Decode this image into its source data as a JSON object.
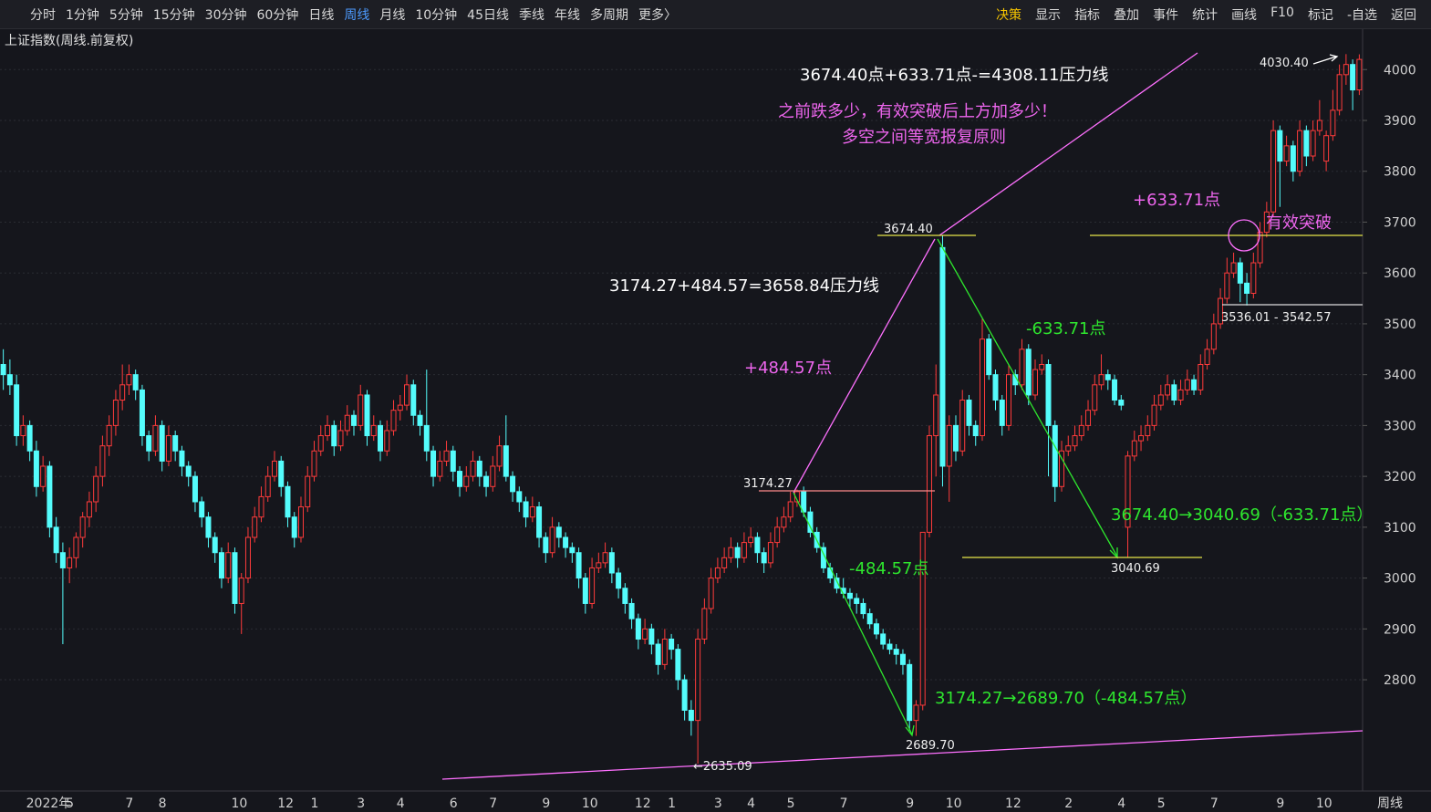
{
  "toolbar": {
    "periods": [
      "分时",
      "1分钟",
      "5分钟",
      "15分钟",
      "30分钟",
      "60分钟",
      "日线",
      "周线",
      "月线",
      "10分钟",
      "45日线",
      "季线",
      "年线",
      "多周期",
      "更多〉"
    ],
    "active": "周线",
    "tools": [
      "决策",
      "显示",
      "指标",
      "叠加",
      "事件",
      "统计",
      "画线",
      "F10",
      "标记",
      "-自选",
      "返回"
    ]
  },
  "subtitle": "上证指数(周线.前复权)",
  "footer_period": "周线",
  "annotations": {
    "top_formula": "3674.40点+633.71点-=4308.11压力线",
    "note1": "之前跌多少，有效突破后上方加多少！",
    "note2": "多空之间等宽报复原则",
    "mid_formula": "3174.27+484.57=3658.84压力线",
    "up1": "+484.57点",
    "down2": "-633.71点",
    "up2": "+633.71点",
    "breakout": "有效突破",
    "down1": "-484.57点",
    "drop2": "3674.40→3040.69（-633.71点）",
    "drop1": "3174.27→2689.70（-484.57点）",
    "p3674": "3674.40",
    "p3174": "3174.27",
    "p3040": "3040.69",
    "p2689": "2689.70",
    "p2635": "←2635.09",
    "p4030": "4030.40",
    "p3536": "3536.01 - 3542.57"
  },
  "chart_data": {
    "type": "candlestick",
    "up_color": "#ff3b3b",
    "down_color": "#54fcfc",
    "grid": true,
    "ylim": [
      2583,
      4083
    ],
    "yticks": [
      2800,
      2900,
      3000,
      3100,
      3200,
      3300,
      3400,
      3500,
      3600,
      3700,
      3800,
      3900,
      4000
    ],
    "categories": [
      null,
      null,
      null,
      null,
      "2022年",
      null,
      null,
      null,
      null,
      null,
      "5",
      null,
      null,
      null,
      null,
      null,
      null,
      null,
      null,
      "7",
      null,
      null,
      null,
      null,
      "8",
      null,
      null,
      null,
      null,
      null,
      null,
      null,
      null,
      null,
      null,
      "10",
      null,
      null,
      null,
      null,
      null,
      null,
      "12",
      null,
      null,
      null,
      null,
      "1",
      null,
      null,
      null,
      null,
      null,
      null,
      "3",
      null,
      null,
      null,
      null,
      null,
      "4",
      null,
      null,
      null,
      null,
      null,
      null,
      null,
      "6",
      null,
      null,
      null,
      null,
      null,
      "7",
      null,
      null,
      null,
      null,
      null,
      null,
      null,
      "9",
      null,
      null,
      null,
      null,
      null,
      "10",
      null,
      null,
      null,
      null,
      null,
      null,
      null,
      "12",
      null,
      null,
      null,
      null,
      "1",
      null,
      null,
      null,
      null,
      null,
      null,
      "3",
      null,
      null,
      null,
      null,
      "4",
      null,
      null,
      null,
      null,
      null,
      "5",
      null,
      null,
      null,
      null,
      null,
      null,
      null,
      "7",
      null,
      null,
      null,
      null,
      null,
      null,
      null,
      null,
      null,
      "9",
      null,
      null,
      null,
      null,
      null,
      "10",
      null,
      null,
      null,
      null,
      null,
      null,
      null,
      null,
      "12",
      null,
      null,
      null,
      null,
      null,
      null,
      null,
      null,
      "2",
      null,
      null,
      null,
      null,
      null,
      null,
      null,
      "4",
      null,
      null,
      null,
      null,
      null,
      "5",
      null,
      null,
      null,
      null,
      null,
      null,
      null,
      "7",
      null,
      null,
      null,
      null,
      null,
      null,
      null,
      null,
      null,
      "9",
      null,
      null,
      null,
      null,
      null,
      "10",
      null,
      null,
      null,
      null,
      null,
      null
    ],
    "candles": [
      [
        3420,
        3450,
        3370,
        3400
      ],
      [
        3400,
        3430,
        3360,
        3380
      ],
      [
        3380,
        3400,
        3260,
        3280
      ],
      [
        3280,
        3320,
        3260,
        3300
      ],
      [
        3300,
        3310,
        3230,
        3250
      ],
      [
        3250,
        3270,
        3160,
        3180
      ],
      [
        3180,
        3240,
        3170,
        3220
      ],
      [
        3220,
        3230,
        3080,
        3100
      ],
      [
        3100,
        3120,
        3030,
        3050
      ],
      [
        3050,
        3070,
        2870,
        3020
      ],
      [
        3020,
        3060,
        2990,
        3040
      ],
      [
        3040,
        3090,
        3020,
        3080
      ],
      [
        3080,
        3130,
        3060,
        3120
      ],
      [
        3120,
        3170,
        3100,
        3150
      ],
      [
        3150,
        3220,
        3130,
        3200
      ],
      [
        3200,
        3280,
        3180,
        3260
      ],
      [
        3260,
        3320,
        3240,
        3300
      ],
      [
        3300,
        3370,
        3280,
        3350
      ],
      [
        3350,
        3420,
        3330,
        3380
      ],
      [
        3380,
        3420,
        3360,
        3400
      ],
      [
        3400,
        3410,
        3350,
        3370
      ],
      [
        3370,
        3380,
        3260,
        3280
      ],
      [
        3280,
        3290,
        3230,
        3250
      ],
      [
        3250,
        3320,
        3240,
        3300
      ],
      [
        3300,
        3310,
        3210,
        3230
      ],
      [
        3230,
        3300,
        3220,
        3280
      ],
      [
        3280,
        3290,
        3230,
        3250
      ],
      [
        3250,
        3260,
        3200,
        3220
      ],
      [
        3220,
        3230,
        3180,
        3200
      ],
      [
        3200,
        3210,
        3130,
        3150
      ],
      [
        3150,
        3160,
        3100,
        3120
      ],
      [
        3120,
        3130,
        3060,
        3080
      ],
      [
        3080,
        3090,
        3030,
        3050
      ],
      [
        3050,
        3060,
        2980,
        3000
      ],
      [
        3000,
        3070,
        2990,
        3050
      ],
      [
        3050,
        3060,
        2930,
        2950
      ],
      [
        2950,
        3010,
        2890,
        3000
      ],
      [
        3000,
        3100,
        2990,
        3080
      ],
      [
        3080,
        3140,
        3070,
        3120
      ],
      [
        3120,
        3180,
        3110,
        3160
      ],
      [
        3160,
        3220,
        3150,
        3200
      ],
      [
        3200,
        3250,
        3190,
        3230
      ],
      [
        3230,
        3240,
        3160,
        3180
      ],
      [
        3180,
        3190,
        3100,
        3120
      ],
      [
        3120,
        3130,
        3060,
        3080
      ],
      [
        3080,
        3160,
        3070,
        3140
      ],
      [
        3140,
        3220,
        3130,
        3200
      ],
      [
        3200,
        3270,
        3190,
        3250
      ],
      [
        3250,
        3300,
        3240,
        3280
      ],
      [
        3280,
        3320,
        3270,
        3300
      ],
      [
        3300,
        3310,
        3240,
        3260
      ],
      [
        3260,
        3310,
        3250,
        3290
      ],
      [
        3290,
        3340,
        3280,
        3320
      ],
      [
        3320,
        3330,
        3280,
        3300
      ],
      [
        3300,
        3380,
        3290,
        3360
      ],
      [
        3360,
        3370,
        3260,
        3280
      ],
      [
        3280,
        3320,
        3270,
        3300
      ],
      [
        3300,
        3310,
        3230,
        3250
      ],
      [
        3250,
        3310,
        3240,
        3290
      ],
      [
        3290,
        3350,
        3280,
        3330
      ],
      [
        3330,
        3360,
        3310,
        3340
      ],
      [
        3340,
        3400,
        3330,
        3380
      ],
      [
        3380,
        3390,
        3300,
        3320
      ],
      [
        3320,
        3330,
        3280,
        3300
      ],
      [
        3300,
        3410,
        3230,
        3250
      ],
      [
        3250,
        3260,
        3180,
        3200
      ],
      [
        3200,
        3250,
        3190,
        3230
      ],
      [
        3230,
        3270,
        3220,
        3250
      ],
      [
        3250,
        3260,
        3190,
        3210
      ],
      [
        3210,
        3220,
        3160,
        3180
      ],
      [
        3180,
        3220,
        3170,
        3200
      ],
      [
        3200,
        3250,
        3190,
        3230
      ],
      [
        3230,
        3240,
        3180,
        3200
      ],
      [
        3200,
        3210,
        3160,
        3180
      ],
      [
        3180,
        3240,
        3170,
        3220
      ],
      [
        3220,
        3280,
        3210,
        3260
      ],
      [
        3260,
        3320,
        3190,
        3200
      ],
      [
        3200,
        3210,
        3150,
        3170
      ],
      [
        3170,
        3180,
        3130,
        3150
      ],
      [
        3150,
        3160,
        3100,
        3120
      ],
      [
        3120,
        3160,
        3110,
        3140
      ],
      [
        3140,
        3150,
        3060,
        3080
      ],
      [
        3080,
        3090,
        3030,
        3050
      ],
      [
        3050,
        3120,
        3040,
        3100
      ],
      [
        3100,
        3110,
        3060,
        3080
      ],
      [
        3080,
        3090,
        3040,
        3060
      ],
      [
        3060,
        3070,
        3030,
        3050
      ],
      [
        3050,
        3060,
        2980,
        3000
      ],
      [
        3000,
        3010,
        2930,
        2950
      ],
      [
        2950,
        3040,
        2940,
        3020
      ],
      [
        3020,
        3050,
        3010,
        3030
      ],
      [
        3030,
        3070,
        3020,
        3050
      ],
      [
        3050,
        3060,
        2990,
        3010
      ],
      [
        3010,
        3020,
        2960,
        2980
      ],
      [
        2980,
        2990,
        2930,
        2950
      ],
      [
        2950,
        2960,
        2900,
        2920
      ],
      [
        2920,
        2930,
        2860,
        2880
      ],
      [
        2880,
        2920,
        2870,
        2900
      ],
      [
        2900,
        2910,
        2850,
        2870
      ],
      [
        2870,
        2880,
        2810,
        2830
      ],
      [
        2830,
        2900,
        2820,
        2880
      ],
      [
        2880,
        2890,
        2840,
        2860
      ],
      [
        2860,
        2870,
        2780,
        2800
      ],
      [
        2800,
        2810,
        2720,
        2740
      ],
      [
        2740,
        2760,
        2690,
        2720
      ],
      [
        2720,
        2900,
        2635.09,
        2880
      ],
      [
        2880,
        2960,
        2870,
        2940
      ],
      [
        2940,
        3020,
        2930,
        3000
      ],
      [
        3000,
        3040,
        2990,
        3020
      ],
      [
        3020,
        3060,
        3010,
        3040
      ],
      [
        3040,
        3080,
        3030,
        3060
      ],
      [
        3060,
        3070,
        3020,
        3040
      ],
      [
        3040,
        3090,
        3030,
        3070
      ],
      [
        3070,
        3100,
        3060,
        3080
      ],
      [
        3080,
        3090,
        3030,
        3050
      ],
      [
        3050,
        3060,
        3010,
        3030
      ],
      [
        3030,
        3090,
        3020,
        3070
      ],
      [
        3070,
        3120,
        3060,
        3100
      ],
      [
        3100,
        3140,
        3090,
        3120
      ],
      [
        3120,
        3170,
        3110,
        3150
      ],
      [
        3150,
        3174.27,
        3140,
        3170
      ],
      [
        3170,
        3180,
        3120,
        3130
      ],
      [
        3130,
        3140,
        3080,
        3090
      ],
      [
        3090,
        3100,
        3050,
        3060
      ],
      [
        3060,
        3070,
        3010,
        3020
      ],
      [
        3020,
        3030,
        2990,
        3000
      ],
      [
        3000,
        3010,
        2970,
        2980
      ],
      [
        2980,
        3000,
        2960,
        2970
      ],
      [
        2970,
        2980,
        2940,
        2960
      ],
      [
        2960,
        2970,
        2930,
        2950
      ],
      [
        2950,
        2960,
        2920,
        2930
      ],
      [
        2930,
        2940,
        2900,
        2910
      ],
      [
        2910,
        2920,
        2880,
        2890
      ],
      [
        2890,
        2900,
        2860,
        2870
      ],
      [
        2870,
        2880,
        2850,
        2860
      ],
      [
        2860,
        2870,
        2830,
        2850
      ],
      [
        2850,
        2860,
        2810,
        2830
      ],
      [
        2830,
        2840,
        2700,
        2720
      ],
      [
        2720,
        2760,
        2689.7,
        2750
      ],
      [
        2750,
        3090,
        2740,
        3090
      ],
      [
        3090,
        3300,
        3080,
        3280
      ],
      [
        3280,
        3420,
        3200,
        3360
      ],
      [
        3650,
        3674.4,
        3180,
        3220
      ],
      [
        3220,
        3320,
        3150,
        3300
      ],
      [
        3300,
        3320,
        3230,
        3250
      ],
      [
        3250,
        3370,
        3240,
        3350
      ],
      [
        3350,
        3360,
        3280,
        3300
      ],
      [
        3300,
        3310,
        3260,
        3280
      ],
      [
        3280,
        3510,
        3270,
        3470
      ],
      [
        3470,
        3480,
        3390,
        3400
      ],
      [
        3400,
        3410,
        3330,
        3350
      ],
      [
        3350,
        3360,
        3280,
        3300
      ],
      [
        3300,
        3420,
        3290,
        3400
      ],
      [
        3400,
        3410,
        3360,
        3380
      ],
      [
        3380,
        3470,
        3370,
        3450
      ],
      [
        3450,
        3460,
        3340,
        3360
      ],
      [
        3360,
        3430,
        3350,
        3410
      ],
      [
        3410,
        3440,
        3400,
        3420
      ],
      [
        3420,
        3430,
        3200,
        3300
      ],
      [
        3300,
        3310,
        3150,
        3180
      ],
      [
        3180,
        3270,
        3170,
        3250
      ],
      [
        3250,
        3280,
        3240,
        3260
      ],
      [
        3260,
        3300,
        3250,
        3280
      ],
      [
        3280,
        3320,
        3270,
        3300
      ],
      [
        3300,
        3350,
        3290,
        3330
      ],
      [
        3330,
        3400,
        3320,
        3380
      ],
      [
        3380,
        3440,
        3370,
        3400
      ],
      [
        3400,
        3410,
        3370,
        3390
      ],
      [
        3390,
        3400,
        3340,
        3350
      ],
      [
        3350,
        3360,
        3330,
        3340
      ],
      [
        3100,
        3250,
        3040.69,
        3240
      ],
      [
        3240,
        3290,
        3230,
        3270
      ],
      [
        3270,
        3300,
        3250,
        3280
      ],
      [
        3280,
        3320,
        3270,
        3300
      ],
      [
        3300,
        3360,
        3290,
        3340
      ],
      [
        3340,
        3380,
        3330,
        3360
      ],
      [
        3360,
        3400,
        3350,
        3380
      ],
      [
        3380,
        3390,
        3340,
        3350
      ],
      [
        3350,
        3390,
        3340,
        3370
      ],
      [
        3370,
        3410,
        3360,
        3390
      ],
      [
        3390,
        3400,
        3360,
        3370
      ],
      [
        3370,
        3440,
        3360,
        3420
      ],
      [
        3420,
        3470,
        3410,
        3450
      ],
      [
        3450,
        3520,
        3440,
        3500
      ],
      [
        3500,
        3570,
        3490,
        3550
      ],
      [
        3550,
        3630,
        3540,
        3600
      ],
      [
        3600,
        3640,
        3590,
        3620
      ],
      [
        3620,
        3630,
        3542.57,
        3580
      ],
      [
        3580,
        3600,
        3536.01,
        3560
      ],
      [
        3560,
        3640,
        3550,
        3620
      ],
      [
        3620,
        3700,
        3610,
        3680
      ],
      [
        3680,
        3740,
        3670,
        3720
      ],
      [
        3720,
        3900,
        3710,
        3880
      ],
      [
        3880,
        3890,
        3730,
        3820
      ],
      [
        3820,
        3870,
        3810,
        3850
      ],
      [
        3850,
        3860,
        3780,
        3800
      ],
      [
        3800,
        3900,
        3790,
        3880
      ],
      [
        3880,
        3890,
        3810,
        3830
      ],
      [
        3830,
        3900,
        3820,
        3880
      ],
      [
        3880,
        3940,
        3870,
        3900
      ],
      [
        3820,
        3880,
        3800,
        3870
      ],
      [
        3870,
        3960,
        3860,
        3920
      ],
      [
        3920,
        4010,
        3910,
        3990
      ],
      [
        3990,
        4030.4,
        3970,
        4010
      ],
      [
        4010,
        4020,
        3920,
        3960
      ],
      [
        3960,
        4030,
        3950,
        4020
      ]
    ]
  }
}
